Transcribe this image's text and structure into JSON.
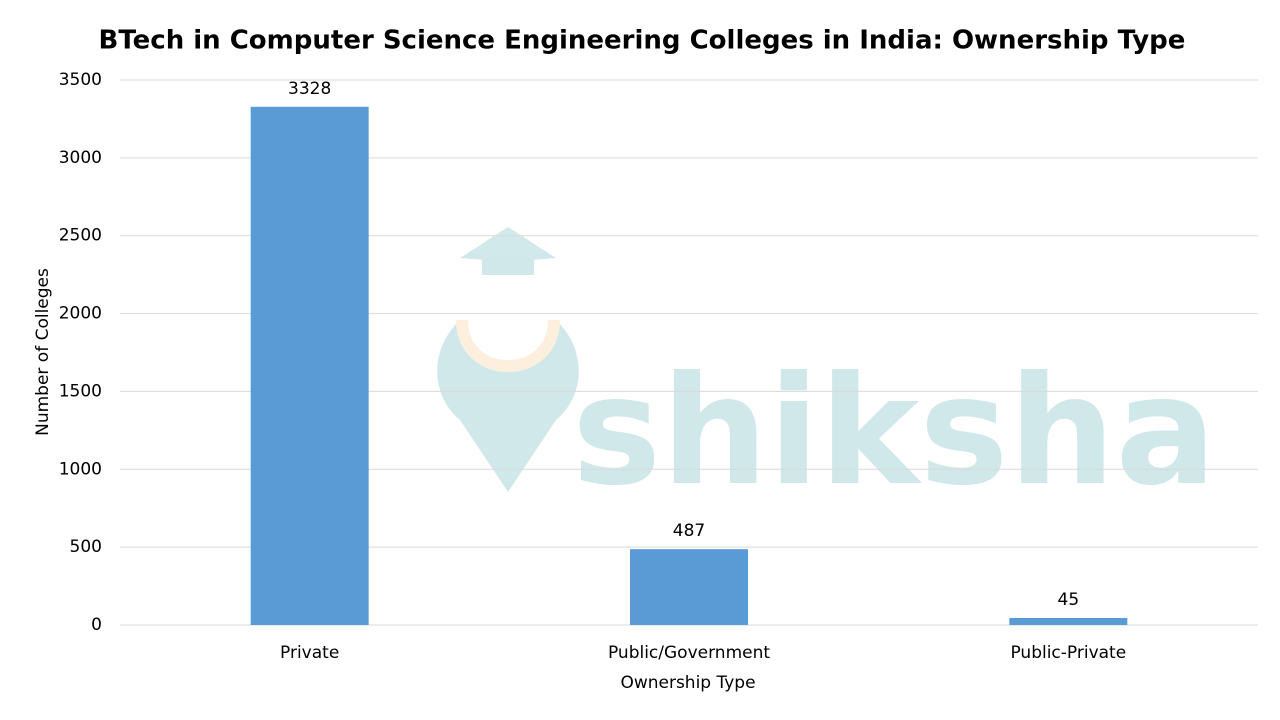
{
  "chart_data": {
    "type": "bar",
    "title": "BTech in Computer Science Engineering Colleges in India: Ownership Type",
    "x_label": "Ownership Type",
    "y_label": "Number of Colleges",
    "categories": [
      "Private",
      "Public/Government",
      "Public-Private"
    ],
    "values": [
      3328,
      487,
      45
    ],
    "color": "#5b9bd5",
    "ylim": [
      0,
      3500
    ],
    "yticks": [
      0,
      500,
      1000,
      1500,
      2000,
      2500,
      3000,
      3500
    ],
    "grid": true,
    "watermark": "shiksha"
  }
}
